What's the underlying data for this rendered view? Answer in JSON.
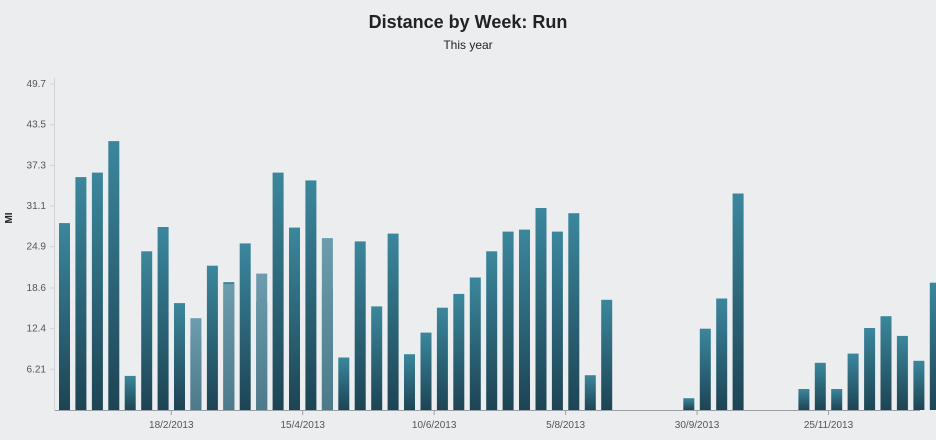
{
  "chart_data": {
    "type": "bar",
    "title": "Distance by Week: Run",
    "subtitle": "This year",
    "ylabel": "MI",
    "xlabel": "",
    "ylim": [
      0,
      49.7
    ],
    "yticks": [
      "49.7",
      "43.5",
      "37.3",
      "31.1",
      "24.9",
      "18.6",
      "12.4",
      "6.21"
    ],
    "x_tick_labels": [
      "18/2/2013",
      "15/4/2013",
      "10/6/2013",
      "5/8/2013",
      "30/9/2013",
      "25/11/2013"
    ],
    "x_tick_week_index": [
      6,
      14,
      22,
      30,
      38,
      46
    ],
    "grid": false,
    "legend": "none",
    "series": [
      {
        "values": [
          28.5,
          35.5,
          36.2,
          41.0,
          5.2,
          24.2,
          27.9,
          16.3,
          11.2,
          22.0,
          19.5,
          25.4,
          16.5,
          36.2,
          27.8,
          35.0,
          18.5,
          8.0,
          25.7,
          15.8,
          26.9,
          8.5,
          11.8,
          15.6,
          17.7,
          20.2,
          24.2,
          27.2,
          27.5,
          30.8,
          27.2,
          30.0,
          5.3,
          16.8,
          null,
          null,
          null,
          null,
          1.8,
          12.4,
          17.0,
          33.0,
          null,
          null,
          null,
          3.2,
          7.2,
          3.2,
          8.6,
          12.5,
          14.3,
          11.3,
          7.5,
          19.4
        ]
      },
      {
        "values": [
          0,
          0,
          0,
          0,
          0,
          0,
          0,
          0,
          14.0,
          0,
          19.2,
          0,
          20.8,
          0,
          0,
          0,
          0,
          0,
          0,
          0,
          0,
          0,
          0,
          0,
          0,
          0,
          0,
          0,
          0,
          0,
          0,
          0,
          0,
          0,
          null,
          null,
          null,
          null,
          0,
          0,
          0,
          0,
          null,
          null,
          null,
          0,
          0,
          0,
          0,
          0,
          0,
          0,
          0,
          0
        ]
      },
      {
        "values": [
          0,
          0,
          0,
          0,
          0,
          0,
          0,
          0,
          0,
          0,
          0,
          0,
          0,
          0,
          0,
          0,
          26.2,
          0,
          0,
          0,
          0,
          0,
          0,
          0,
          0,
          0,
          0,
          0,
          0,
          0,
          0,
          0,
          0,
          0,
          null,
          null,
          null,
          null,
          0,
          0,
          0,
          0,
          null,
          null,
          null,
          0,
          0,
          0,
          0,
          0,
          0,
          0,
          0,
          0
        ]
      }
    ],
    "colors": {
      "bar_top": "#3a8399",
      "bar_bottom": "#1f4a5a",
      "highlight": "#6e9aab",
      "axis": "#9aa0a6"
    }
  }
}
